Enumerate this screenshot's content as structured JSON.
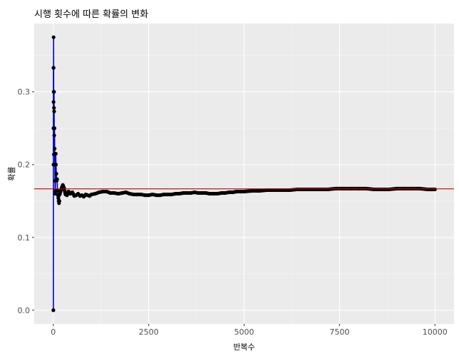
{
  "chart_data": {
    "type": "scatter",
    "title": "시행 횟수에 따른 확률의 변화",
    "xlabel": "반복수",
    "ylabel": "확률",
    "xlim": [
      -500,
      10500
    ],
    "ylim": [
      -0.0188,
      0.3938
    ],
    "x_ticks": [
      0,
      2500,
      5000,
      7500,
      10000
    ],
    "x_tick_labels": [
      "0",
      "2500",
      "5000",
      "7500",
      "10000"
    ],
    "y_ticks": [
      0.0,
      0.1,
      0.2,
      0.3
    ],
    "y_tick_labels": [
      "0.0",
      "0.1",
      "0.2",
      "0.3"
    ],
    "grid": true,
    "background": "#ebebeb",
    "reference_line": {
      "y": 0.1667,
      "color": "#cc0000"
    },
    "series_color": "#0000cc",
    "point_color": "#000000",
    "points": [
      [
        1,
        0.0
      ],
      [
        2,
        0.0
      ],
      [
        3,
        0.333
      ],
      [
        4,
        0.25
      ],
      [
        5,
        0.2
      ],
      [
        6,
        0.333
      ],
      [
        7,
        0.286
      ],
      [
        8,
        0.375
      ],
      [
        9,
        0.333
      ],
      [
        10,
        0.3
      ],
      [
        12,
        0.25
      ],
      [
        14,
        0.214
      ],
      [
        16,
        0.25
      ],
      [
        18,
        0.278
      ],
      [
        20,
        0.3
      ],
      [
        22,
        0.273
      ],
      [
        25,
        0.24
      ],
      [
        28,
        0.25
      ],
      [
        32,
        0.25
      ],
      [
        36,
        0.222
      ],
      [
        40,
        0.2
      ],
      [
        45,
        0.178
      ],
      [
        50,
        0.16
      ],
      [
        55,
        0.164
      ],
      [
        60,
        0.2
      ],
      [
        65,
        0.215
      ],
      [
        70,
        0.2
      ],
      [
        80,
        0.1875
      ],
      [
        90,
        0.178
      ],
      [
        100,
        0.18
      ],
      [
        110,
        0.164
      ],
      [
        120,
        0.158
      ],
      [
        130,
        0.154
      ],
      [
        140,
        0.15
      ],
      [
        150,
        0.147
      ],
      [
        160,
        0.15
      ],
      [
        170,
        0.159
      ],
      [
        180,
        0.161
      ],
      [
        190,
        0.163
      ],
      [
        200,
        0.165
      ],
      [
        220,
        0.168
      ],
      [
        250,
        0.172
      ],
      [
        280,
        0.168
      ],
      [
        320,
        0.159
      ],
      [
        360,
        0.158
      ],
      [
        400,
        0.163
      ],
      [
        450,
        0.16
      ],
      [
        500,
        0.162
      ],
      [
        550,
        0.157
      ],
      [
        600,
        0.158
      ],
      [
        650,
        0.16
      ],
      [
        700,
        0.157
      ],
      [
        750,
        0.158
      ],
      [
        800,
        0.156
      ],
      [
        850,
        0.159
      ],
      [
        900,
        0.158
      ],
      [
        950,
        0.157
      ],
      [
        1000,
        0.159
      ],
      [
        1100,
        0.16
      ],
      [
        1200,
        0.162
      ],
      [
        1300,
        0.163
      ],
      [
        1400,
        0.163
      ],
      [
        1500,
        0.161
      ],
      [
        1600,
        0.161
      ],
      [
        1700,
        0.16
      ],
      [
        1800,
        0.161
      ],
      [
        1900,
        0.162
      ],
      [
        2000,
        0.16
      ],
      [
        2100,
        0.159
      ],
      [
        2200,
        0.159
      ],
      [
        2300,
        0.159
      ],
      [
        2400,
        0.158
      ],
      [
        2500,
        0.158
      ],
      [
        2600,
        0.159
      ],
      [
        2700,
        0.158
      ],
      [
        2800,
        0.158
      ],
      [
        2900,
        0.159
      ],
      [
        3000,
        0.159
      ],
      [
        3100,
        0.159
      ],
      [
        3200,
        0.16
      ],
      [
        3300,
        0.16
      ],
      [
        3400,
        0.161
      ],
      [
        3500,
        0.161
      ],
      [
        3600,
        0.161
      ],
      [
        3700,
        0.162
      ],
      [
        3800,
        0.161
      ],
      [
        3900,
        0.161
      ],
      [
        4000,
        0.161
      ],
      [
        4100,
        0.16
      ],
      [
        4200,
        0.16
      ],
      [
        4300,
        0.16
      ],
      [
        4400,
        0.161
      ],
      [
        4500,
        0.161
      ],
      [
        4600,
        0.162
      ],
      [
        4700,
        0.162
      ],
      [
        4800,
        0.163
      ],
      [
        4900,
        0.163
      ],
      [
        5000,
        0.163
      ],
      [
        5200,
        0.164
      ],
      [
        5400,
        0.164
      ],
      [
        5600,
        0.165
      ],
      [
        5800,
        0.165
      ],
      [
        6000,
        0.165
      ],
      [
        6200,
        0.165
      ],
      [
        6400,
        0.166
      ],
      [
        6600,
        0.166
      ],
      [
        6800,
        0.166
      ],
      [
        7000,
        0.166
      ],
      [
        7200,
        0.166
      ],
      [
        7400,
        0.167
      ],
      [
        7600,
        0.167
      ],
      [
        7800,
        0.167
      ],
      [
        8000,
        0.167
      ],
      [
        8200,
        0.167
      ],
      [
        8400,
        0.166
      ],
      [
        8600,
        0.166
      ],
      [
        8800,
        0.166
      ],
      [
        9000,
        0.167
      ],
      [
        9200,
        0.167
      ],
      [
        9400,
        0.167
      ],
      [
        9600,
        0.167
      ],
      [
        9800,
        0.166
      ],
      [
        10000,
        0.166
      ]
    ]
  }
}
